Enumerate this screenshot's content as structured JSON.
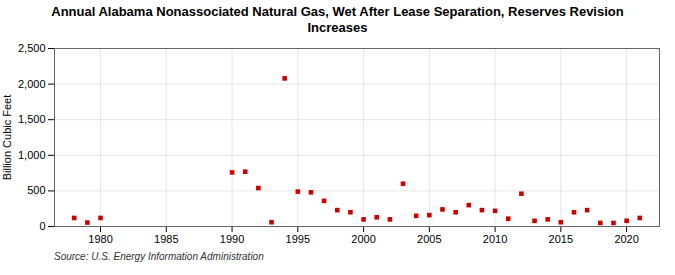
{
  "chart_data": {
    "type": "scatter",
    "title": "Annual Alabama Nonassociated Natural Gas, Wet After Lease Separation, Reserves Revision\nIncreases",
    "ylabel": "Billion Cubic Feet",
    "source": "Source: U.S. Energy Information Administration",
    "x": [
      1978,
      1979,
      1980,
      1990,
      1991,
      1992,
      1993,
      1994,
      1995,
      1996,
      1997,
      1998,
      1999,
      2000,
      2001,
      2002,
      2003,
      2004,
      2005,
      2006,
      2007,
      2008,
      2009,
      2010,
      2011,
      2012,
      2013,
      2014,
      2015,
      2016,
      2017,
      2018,
      2019,
      2020,
      2021
    ],
    "values": [
      120,
      55,
      120,
      760,
      770,
      540,
      60,
      2080,
      490,
      480,
      360,
      230,
      200,
      100,
      130,
      100,
      600,
      150,
      160,
      240,
      200,
      300,
      230,
      220,
      110,
      460,
      80,
      100,
      60,
      200,
      230,
      50,
      50,
      80,
      120
    ],
    "color": "#cc0000",
    "marker": "square",
    "xlim": [
      1976.5,
      2022.5
    ],
    "xticks": [
      1980,
      1985,
      1990,
      1995,
      2000,
      2005,
      2010,
      2015,
      2020
    ],
    "ylim": [
      0,
      2500
    ],
    "yticks": [
      0,
      500,
      {
        "value": 1000,
        "label": "1,000"
      },
      {
        "value": 1500,
        "label": "1,500"
      },
      {
        "value": 2000,
        "label": "2,000"
      },
      {
        "value": 2500,
        "label": "2,500"
      }
    ],
    "grid": true
  }
}
